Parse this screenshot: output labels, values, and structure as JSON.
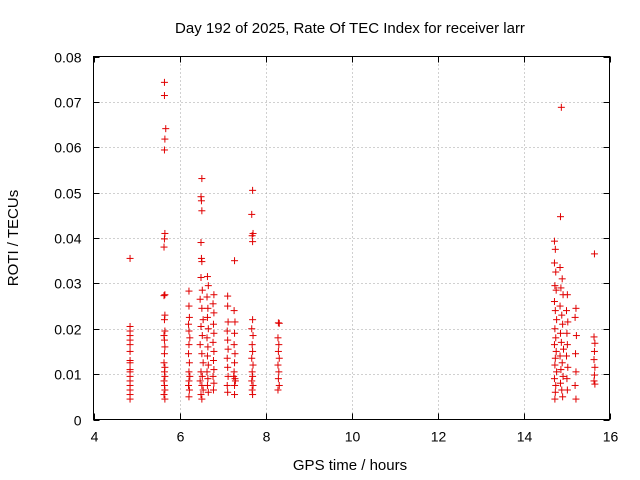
{
  "chart_data": {
    "type": "scatter",
    "title": "Day 192 of 2025, Rate Of TEC Index for receiver larr",
    "xlabel": "GPS time / hours",
    "ylabel": "ROTI / TECUs",
    "xlim": [
      4,
      16
    ],
    "ylim": [
      0,
      0.08
    ],
    "xticks": [
      4,
      6,
      8,
      10,
      12,
      14,
      16
    ],
    "xtick_labels": [
      "4",
      "6",
      "8",
      "10",
      "12",
      "14",
      "16"
    ],
    "yticks": [
      0,
      0.01,
      0.02,
      0.03,
      0.04,
      0.05,
      0.06,
      0.07,
      0.08
    ],
    "ytick_labels": [
      "0",
      "0.01",
      "0.02",
      "0.03",
      "0.04",
      "0.05",
      "0.06",
      "0.07",
      "0.08"
    ],
    "grid": true,
    "marker": "+",
    "marker_color": "#e00000",
    "series": [
      {
        "name": "ROTI",
        "points": [
          [
            4.85,
            0.0355
          ],
          [
            4.85,
            0.0205
          ],
          [
            4.85,
            0.0195
          ],
          [
            4.85,
            0.0185
          ],
          [
            4.85,
            0.0175
          ],
          [
            4.85,
            0.0165
          ],
          [
            4.85,
            0.015
          ],
          [
            4.85,
            0.013
          ],
          [
            4.85,
            0.0125
          ],
          [
            4.85,
            0.011
          ],
          [
            4.85,
            0.0105
          ],
          [
            4.85,
            0.0095
          ],
          [
            4.85,
            0.0085
          ],
          [
            4.85,
            0.0075
          ],
          [
            4.85,
            0.0065
          ],
          [
            4.85,
            0.0055
          ],
          [
            4.85,
            0.0045
          ],
          [
            5.65,
            0.0743
          ],
          [
            5.65,
            0.0714
          ],
          [
            5.68,
            0.0641
          ],
          [
            5.66,
            0.0618
          ],
          [
            5.65,
            0.0594
          ],
          [
            5.66,
            0.041
          ],
          [
            5.65,
            0.0398
          ],
          [
            5.64,
            0.038
          ],
          [
            5.66,
            0.0275
          ],
          [
            5.64,
            0.0273
          ],
          [
            5.66,
            0.023
          ],
          [
            5.65,
            0.022
          ],
          [
            5.66,
            0.0195
          ],
          [
            5.64,
            0.0185
          ],
          [
            5.65,
            0.0175
          ],
          [
            5.66,
            0.016
          ],
          [
            5.65,
            0.0145
          ],
          [
            5.64,
            0.0125
          ],
          [
            5.66,
            0.0115
          ],
          [
            5.65,
            0.0105
          ],
          [
            5.66,
            0.0095
          ],
          [
            5.64,
            0.0085
          ],
          [
            5.65,
            0.0075
          ],
          [
            5.66,
            0.0065
          ],
          [
            5.64,
            0.0055
          ],
          [
            5.66,
            0.0045
          ],
          [
            6.22,
            0.0283
          ],
          [
            6.22,
            0.025
          ],
          [
            6.23,
            0.0225
          ],
          [
            6.21,
            0.021
          ],
          [
            6.22,
            0.0195
          ],
          [
            6.24,
            0.018
          ],
          [
            6.22,
            0.0165
          ],
          [
            6.21,
            0.0145
          ],
          [
            6.23,
            0.0125
          ],
          [
            6.22,
            0.0105
          ],
          [
            6.24,
            0.0095
          ],
          [
            6.22,
            0.0085
          ],
          [
            6.21,
            0.0075
          ],
          [
            6.23,
            0.0065
          ],
          [
            6.22,
            0.005
          ],
          [
            6.52,
            0.0531
          ],
          [
            6.5,
            0.0491
          ],
          [
            6.51,
            0.0482
          ],
          [
            6.52,
            0.046
          ],
          [
            6.5,
            0.039
          ],
          [
            6.51,
            0.0355
          ],
          [
            6.52,
            0.0348
          ],
          [
            6.5,
            0.0313
          ],
          [
            6.53,
            0.0285
          ],
          [
            6.48,
            0.0265
          ],
          [
            6.52,
            0.0245
          ],
          [
            6.55,
            0.022
          ],
          [
            6.5,
            0.0205
          ],
          [
            6.53,
            0.0185
          ],
          [
            6.48,
            0.0165
          ],
          [
            6.52,
            0.0145
          ],
          [
            6.55,
            0.0125
          ],
          [
            6.5,
            0.0105
          ],
          [
            6.53,
            0.0095
          ],
          [
            6.48,
            0.0085
          ],
          [
            6.52,
            0.0075
          ],
          [
            6.55,
            0.0065
          ],
          [
            6.5,
            0.0055
          ],
          [
            6.52,
            0.0045
          ],
          [
            6.65,
            0.0315
          ],
          [
            6.67,
            0.0295
          ],
          [
            6.64,
            0.027
          ],
          [
            6.66,
            0.0245
          ],
          [
            6.65,
            0.0225
          ],
          [
            6.67,
            0.02
          ],
          [
            6.64,
            0.018
          ],
          [
            6.66,
            0.016
          ],
          [
            6.65,
            0.014
          ],
          [
            6.67,
            0.012
          ],
          [
            6.64,
            0.0105
          ],
          [
            6.66,
            0.009
          ],
          [
            6.65,
            0.0075
          ],
          [
            6.67,
            0.006
          ],
          [
            6.8,
            0.0275
          ],
          [
            6.78,
            0.0255
          ],
          [
            6.8,
            0.0235
          ],
          [
            6.79,
            0.021
          ],
          [
            6.8,
            0.019
          ],
          [
            6.78,
            0.017
          ],
          [
            6.8,
            0.015
          ],
          [
            6.79,
            0.013
          ],
          [
            6.8,
            0.011
          ],
          [
            6.78,
            0.0095
          ],
          [
            6.8,
            0.008
          ],
          [
            6.79,
            0.0065
          ],
          [
            7.12,
            0.0272
          ],
          [
            7.12,
            0.025
          ],
          [
            7.13,
            0.0215
          ],
          [
            7.11,
            0.0195
          ],
          [
            7.12,
            0.0175
          ],
          [
            7.13,
            0.0155
          ],
          [
            7.11,
            0.0135
          ],
          [
            7.12,
            0.0115
          ],
          [
            7.13,
            0.0095
          ],
          [
            7.11,
            0.0075
          ],
          [
            7.12,
            0.006
          ],
          [
            7.28,
            0.035
          ],
          [
            7.27,
            0.024
          ],
          [
            7.29,
            0.0215
          ],
          [
            7.28,
            0.019
          ],
          [
            7.27,
            0.0165
          ],
          [
            7.29,
            0.0145
          ],
          [
            7.28,
            0.0125
          ],
          [
            7.27,
            0.0105
          ],
          [
            7.29,
            0.009
          ],
          [
            7.28,
            0.0075
          ],
          [
            7.3,
            0.0085
          ],
          [
            7.26,
            0.0095
          ],
          [
            7.28,
            0.0055
          ],
          [
            7.7,
            0.0505
          ],
          [
            7.68,
            0.0452
          ],
          [
            7.71,
            0.041
          ],
          [
            7.69,
            0.0405
          ],
          [
            7.7,
            0.0392
          ],
          [
            7.7,
            0.022
          ],
          [
            7.68,
            0.02
          ],
          [
            7.71,
            0.0185
          ],
          [
            7.69,
            0.0165
          ],
          [
            7.7,
            0.015
          ],
          [
            7.68,
            0.0135
          ],
          [
            7.71,
            0.012
          ],
          [
            7.69,
            0.0105
          ],
          [
            7.7,
            0.0095
          ],
          [
            7.68,
            0.0085
          ],
          [
            7.71,
            0.0075
          ],
          [
            7.69,
            0.0065
          ],
          [
            7.7,
            0.0055
          ],
          [
            8.3,
            0.0213
          ],
          [
            8.32,
            0.0212
          ],
          [
            8.29,
            0.018
          ],
          [
            8.31,
            0.0165
          ],
          [
            8.3,
            0.015
          ],
          [
            8.32,
            0.0135
          ],
          [
            8.29,
            0.012
          ],
          [
            8.31,
            0.0105
          ],
          [
            8.3,
            0.009
          ],
          [
            8.32,
            0.0075
          ],
          [
            8.29,
            0.0065
          ],
          [
            14.72,
            0.0393
          ],
          [
            14.74,
            0.0375
          ],
          [
            14.72,
            0.0345
          ],
          [
            14.75,
            0.0325
          ],
          [
            14.73,
            0.0295
          ],
          [
            14.76,
            0.0285
          ],
          [
            14.72,
            0.026
          ],
          [
            14.74,
            0.024
          ],
          [
            14.77,
            0.022
          ],
          [
            14.73,
            0.02
          ],
          [
            14.75,
            0.018
          ],
          [
            14.72,
            0.0165
          ],
          [
            14.76,
            0.015
          ],
          [
            14.74,
            0.0135
          ],
          [
            14.73,
            0.012
          ],
          [
            14.77,
            0.0105
          ],
          [
            14.72,
            0.009
          ],
          [
            14.75,
            0.0075
          ],
          [
            14.74,
            0.006
          ],
          [
            14.73,
            0.0045
          ],
          [
            14.88,
            0.0688
          ],
          [
            14.86,
            0.0447
          ],
          [
            14.85,
            0.0335
          ],
          [
            14.9,
            0.031
          ],
          [
            14.87,
            0.029
          ],
          [
            14.92,
            0.0275
          ],
          [
            14.85,
            0.025
          ],
          [
            14.89,
            0.023
          ],
          [
            14.91,
            0.021
          ],
          [
            14.86,
            0.019
          ],
          [
            14.88,
            0.017
          ],
          [
            14.93,
            0.0155
          ],
          [
            14.85,
            0.014
          ],
          [
            14.9,
            0.0125
          ],
          [
            14.87,
            0.011
          ],
          [
            14.92,
            0.0095
          ],
          [
            14.86,
            0.008
          ],
          [
            14.89,
            0.0065
          ],
          [
            14.91,
            0.005
          ],
          [
            15.02,
            0.0275
          ],
          [
            15.0,
            0.024
          ],
          [
            15.03,
            0.0215
          ],
          [
            15.01,
            0.019
          ],
          [
            15.02,
            0.0165
          ],
          [
            15.0,
            0.014
          ],
          [
            15.03,
            0.0115
          ],
          [
            15.01,
            0.009
          ],
          [
            15.02,
            0.0065
          ],
          [
            15.22,
            0.0245
          ],
          [
            15.2,
            0.0225
          ],
          [
            15.23,
            0.0185
          ],
          [
            15.21,
            0.0145
          ],
          [
            15.22,
            0.0105
          ],
          [
            15.2,
            0.0075
          ],
          [
            15.22,
            0.0045
          ],
          [
            15.65,
            0.0365
          ],
          [
            15.64,
            0.0182
          ],
          [
            15.66,
            0.0168
          ],
          [
            15.65,
            0.015
          ],
          [
            15.64,
            0.0132
          ],
          [
            15.66,
            0.0115
          ],
          [
            15.65,
            0.0098
          ],
          [
            15.64,
            0.0085
          ],
          [
            15.66,
            0.0078
          ]
        ]
      }
    ]
  }
}
